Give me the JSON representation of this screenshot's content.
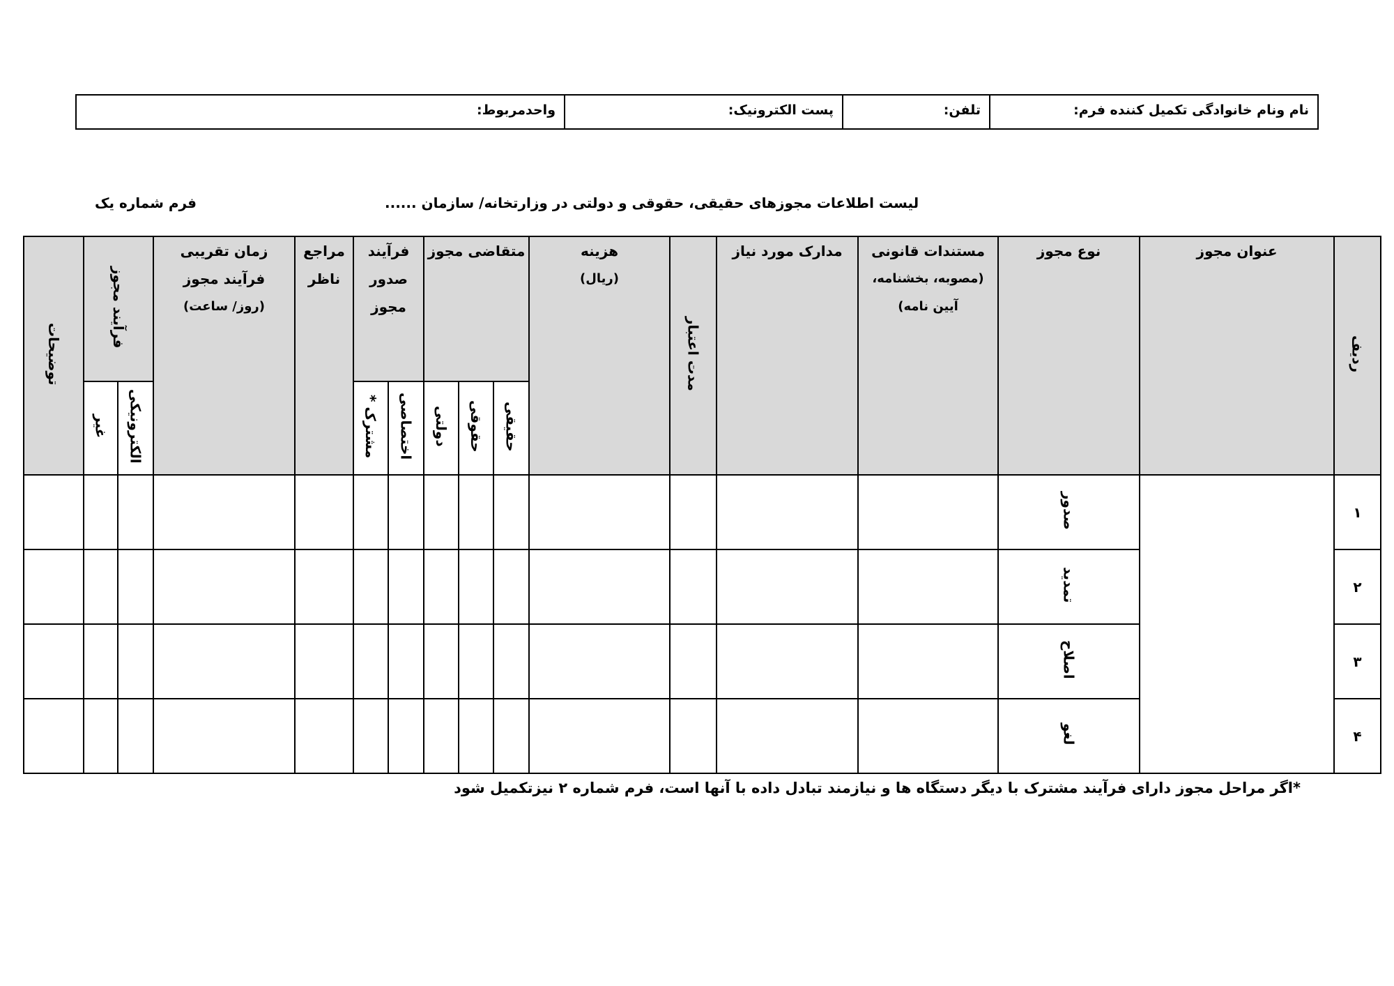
{
  "info_bar": {
    "filler_name": "نام ونام خانوادگی تکمیل کننده فرم:",
    "phone": "تلفن:",
    "email": "پست الکترونیک:",
    "unit": "واحدمربوط:"
  },
  "form_number": "فرم شماره یک",
  "form_title": "لیست اطلاعات مجوزهای حقیقی، حقوقی و دولتی در وزارتخانه/ سازمان ......",
  "headers": {
    "row": "ردیف",
    "title": "عنوان مجوز",
    "type": "نوع مجوز",
    "legal_docs": "مستندات قانونی",
    "legal_docs_note1": "(مصوبه، بخشنامه،",
    "legal_docs_note2": "آیین نامه)",
    "required_docs": "مدارک مورد نیاز",
    "validity": "مدت اعتبار",
    "cost": "هزینه",
    "cost_unit": "(ریال)",
    "applicant": "متقاضی مجوز",
    "applicant_real": "حقیقی",
    "applicant_legal": "حقوقی",
    "applicant_gov": "دولتی",
    "issue_process_1": "فرآیند",
    "issue_process_2": "صدور",
    "issue_process_3": "مجوز",
    "process_exclusive": "اختصاصی",
    "process_shared": "مشترک *",
    "supervisors_1": "مراجع",
    "supervisors_2": "ناظر",
    "time_1": "زمان تقریبی",
    "time_2": "فرآیند مجوز",
    "time_unit": "(روز/ ساعت)",
    "license_process": "فرآیند مجوز",
    "electronic": "الکترونیکی",
    "non": "غیر",
    "notes": "توضیحات"
  },
  "rows": [
    {
      "num": "۱",
      "type": "صدور"
    },
    {
      "num": "۲",
      "type": "تمدید"
    },
    {
      "num": "۳",
      "type": "اصلاح"
    },
    {
      "num": "۴",
      "type": "لغو"
    }
  ],
  "footnote": "*اگر مراحل مجوز دارای فرآیند مشترک با دیگر دستگاه ها و نیازمند تبادل داده با آنها است، فرم شماره ۲ نیزتکمیل شود",
  "colors": {
    "header_bg": "#d9d9d9",
    "border": "#000000"
  }
}
